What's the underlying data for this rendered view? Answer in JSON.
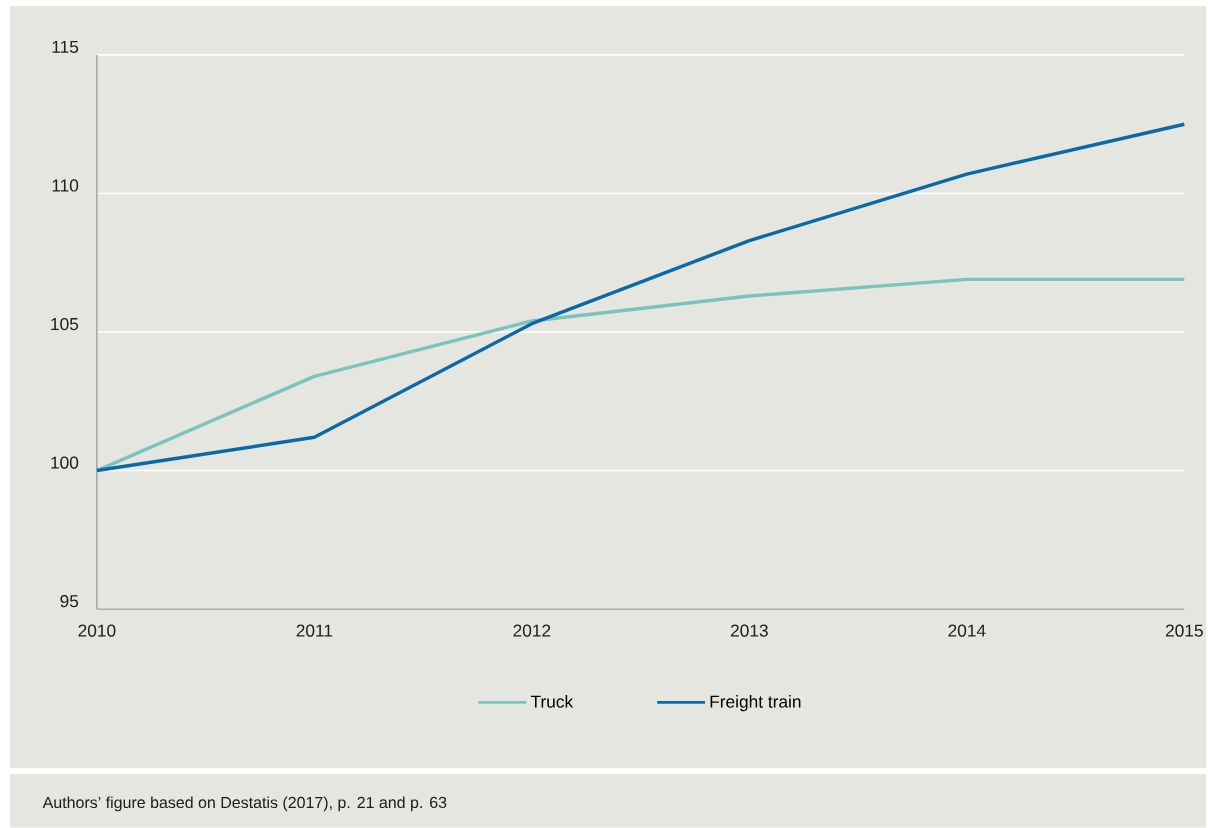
{
  "chart_data": {
    "type": "line",
    "x": [
      2010,
      2011,
      2012,
      2013,
      2014,
      2015
    ],
    "series": [
      {
        "name": "Truck",
        "color": "#7bc4bd",
        "values": [
          100,
          103.4,
          105.4,
          106.3,
          106.9,
          106.9
        ]
      },
      {
        "name": "Freight train",
        "color": "#0a6aa8",
        "values": [
          100,
          101.2,
          105.3,
          108.3,
          110.7,
          112.5
        ]
      }
    ],
    "xlim": [
      2010,
      2015
    ],
    "xticks": [
      2010,
      2011,
      2012,
      2013,
      2014,
      2015
    ],
    "ylim": [
      95,
      115
    ],
    "yticks": [
      95,
      100,
      105,
      110,
      115
    ],
    "grid": "y",
    "legend": "bottom",
    "marker": "none",
    "line_style": "solid",
    "annotations": [
      "Authors’ figure based on Destatis (2017), p. 21 and p. 63"
    ]
  }
}
